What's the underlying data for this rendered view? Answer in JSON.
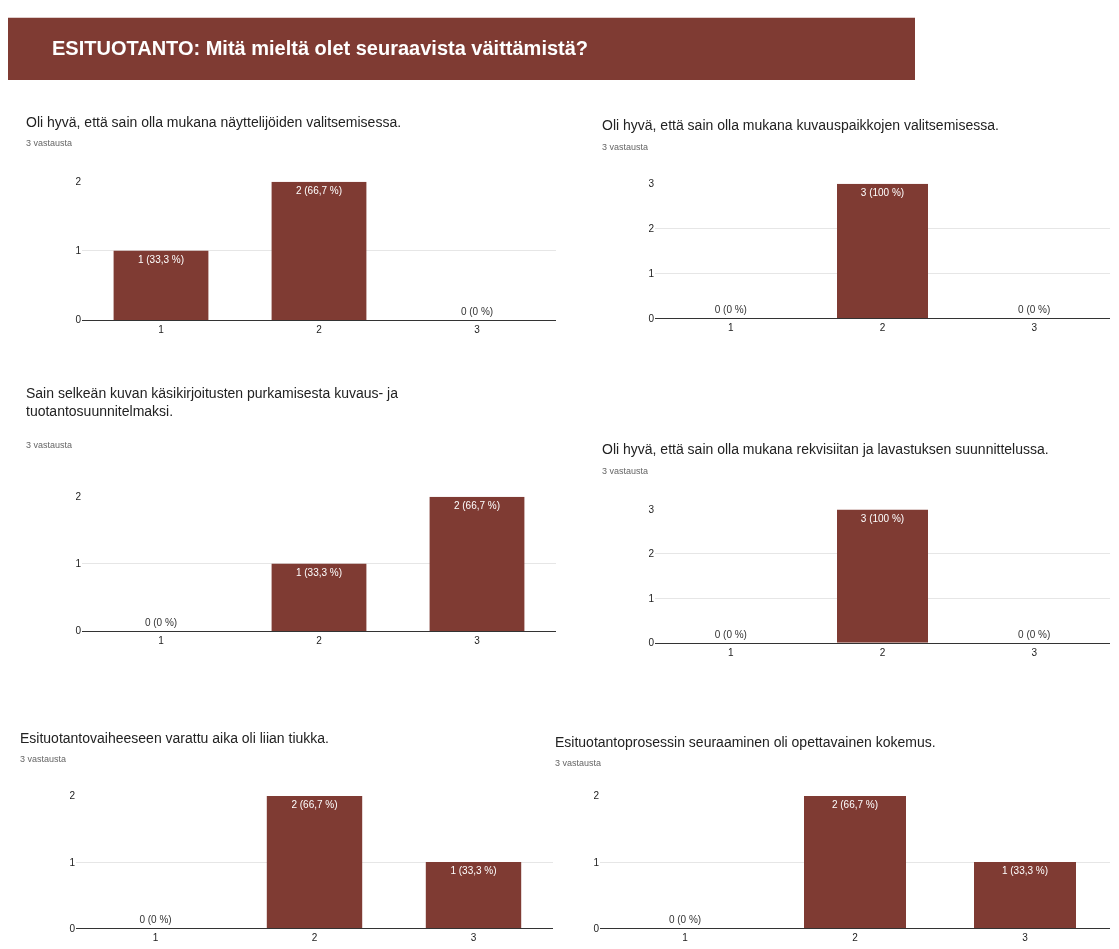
{
  "chart_data": [
    {
      "type": "other",
      "title": "ESITUOTANTO: Mitä mieltä olet seuraavista väittämistä?",
      "color": "#7f3b33"
    },
    {
      "type": "bar",
      "title": "Oli hyvä, että sain olla mukana näyttelijöiden valitsemisessa.",
      "subtitle": "3 vastausta",
      "categories": [
        "1",
        "2",
        "3"
      ],
      "values": [
        1,
        2,
        0
      ],
      "value_labels": [
        "1 (33,3 %)",
        "2 (66,7 %)",
        "0 (0 %)"
      ],
      "color": "#7f3b33",
      "ylim": [
        0,
        2
      ],
      "yticks": [
        0,
        1,
        2
      ],
      "grid": "y"
    },
    {
      "type": "bar",
      "title": "Oli hyvä, että sain olla mukana kuvauspaikkojen valitsemisessa.",
      "subtitle": "3 vastausta",
      "categories": [
        "1",
        "2",
        "3"
      ],
      "values": [
        0,
        3,
        0
      ],
      "value_labels": [
        "0 (0 %)",
        "3 (100 %)",
        "0 (0 %)"
      ],
      "color": "#7f3b33",
      "ylim": [
        0,
        3
      ],
      "yticks": [
        0,
        1,
        2,
        3
      ],
      "grid": "y"
    },
    {
      "type": "bar",
      "title": "Sain selkeän kuvan käsikirjoitusten purkamisesta kuvaus- ja\ntuotantosuunnitelmaksi.",
      "subtitle": "3 vastausta",
      "categories": [
        "1",
        "2",
        "3"
      ],
      "values": [
        0,
        1,
        2
      ],
      "value_labels": [
        "0 (0 %)",
        "1 (33,3 %)",
        "2 (66,7 %)"
      ],
      "color": "#7f3b33",
      "ylim": [
        0,
        2
      ],
      "yticks": [
        0,
        1,
        2
      ],
      "grid": "y"
    },
    {
      "type": "bar",
      "title": "Oli hyvä, että sain olla mukana rekvisiitan ja lavastuksen suunnittelussa.",
      "subtitle": "3 vastausta",
      "categories": [
        "1",
        "2",
        "3"
      ],
      "values": [
        0,
        3,
        0
      ],
      "value_labels": [
        "0 (0 %)",
        "3 (100 %)",
        "0 (0 %)"
      ],
      "color": "#7f3b33",
      "ylim": [
        0,
        3
      ],
      "yticks": [
        0,
        1,
        2,
        3
      ],
      "grid": "y"
    },
    {
      "type": "bar",
      "title": "Esituotantovaiheeseen varattu aika oli liian tiukka.",
      "subtitle": "3 vastausta",
      "categories": [
        "1",
        "2",
        "3"
      ],
      "values": [
        0,
        2,
        1
      ],
      "value_labels": [
        "0 (0 %)",
        "2 (66,7 %)",
        "1 (33,3 %)"
      ],
      "color": "#7f3b33",
      "ylim": [
        0,
        2
      ],
      "yticks": [
        0,
        1,
        2
      ],
      "grid": "y"
    },
    {
      "type": "bar",
      "title": "Esituotantoprosessin seuraaminen oli opettavainen kokemus.",
      "subtitle": "3 vastausta",
      "categories": [
        "1",
        "2",
        "3"
      ],
      "values": [
        0,
        2,
        1
      ],
      "value_labels": [
        "0 (0 %)",
        "2 (66,7 %)",
        "1 (33,3 %)"
      ],
      "color": "#7f3b33",
      "ylim": [
        0,
        2
      ],
      "yticks": [
        0,
        1,
        2
      ],
      "grid": "y"
    }
  ]
}
